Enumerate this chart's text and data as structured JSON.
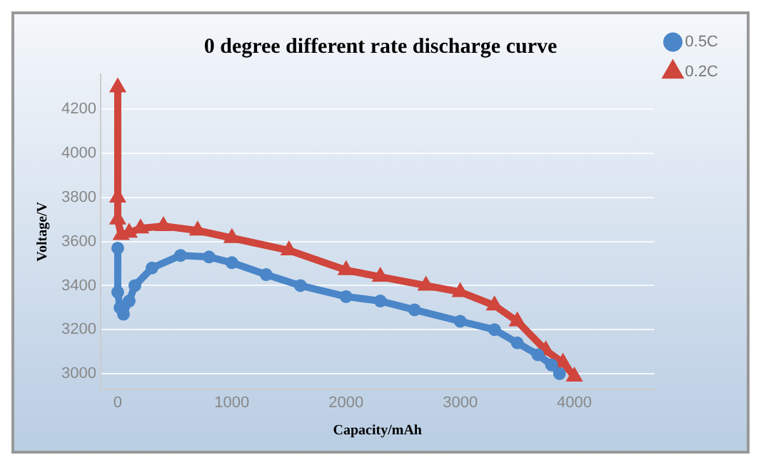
{
  "chart_data": {
    "type": "line",
    "title": "0 degree different rate discharge curve",
    "xlabel": "Capacity/mAh",
    "ylabel": "Voltage/V",
    "xlim": [
      -150,
      4700
    ],
    "xticks": [
      0,
      1000,
      2000,
      3000,
      4000
    ],
    "ylim": [
      2930,
      4360
    ],
    "yticks": [
      3000,
      3200,
      3400,
      3600,
      3800,
      4000,
      4200
    ],
    "grid": "y",
    "legend": "right",
    "series": [
      {
        "name": "0.5C",
        "color": "#4a86c8",
        "marker": "circle",
        "x": [
          0,
          0,
          20,
          50,
          100,
          150,
          300,
          550,
          800,
          1000,
          1300,
          1600,
          2000,
          2300,
          2600,
          3000,
          3300,
          3500,
          3680,
          3800,
          3870
        ],
        "values": [
          3570,
          3370,
          3300,
          3270,
          3330,
          3400,
          3480,
          3537,
          3530,
          3504,
          3450,
          3400,
          3350,
          3330,
          3290,
          3238,
          3200,
          3140,
          3086,
          3040,
          3000
        ]
      },
      {
        "name": "0.2C",
        "color": "#d0453c",
        "marker": "triangle",
        "x": [
          0,
          0,
          0,
          30,
          100,
          200,
          400,
          700,
          1000,
          1500,
          2000,
          2300,
          2700,
          3000,
          3300,
          3500,
          3750,
          3900,
          4000
        ],
        "values": [
          4300,
          3800,
          3700,
          3630,
          3640,
          3660,
          3670,
          3650,
          3616,
          3560,
          3470,
          3440,
          3400,
          3371,
          3310,
          3238,
          3106,
          3050,
          2987
        ]
      }
    ]
  }
}
